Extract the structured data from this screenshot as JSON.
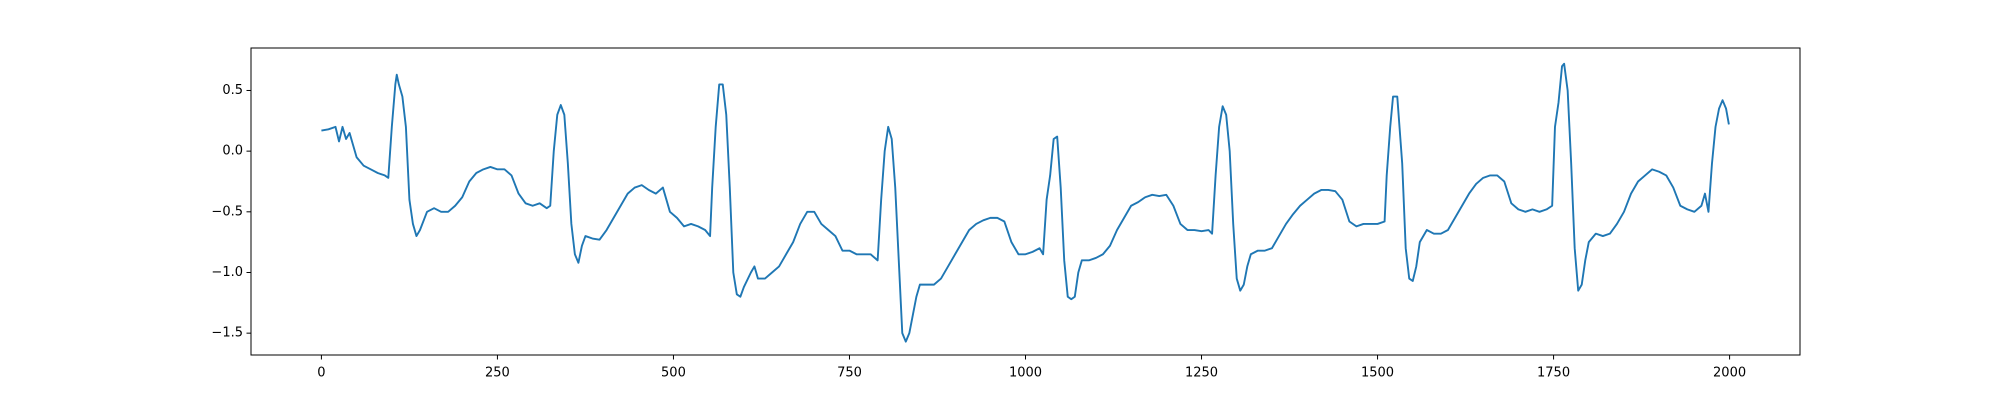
{
  "chart_data": {
    "type": "line",
    "x": [
      0,
      10,
      20,
      25,
      30,
      35,
      40,
      45,
      50,
      60,
      70,
      80,
      90,
      95,
      100,
      105,
      107,
      110,
      115,
      120,
      125,
      130,
      135,
      140,
      150,
      160,
      170,
      180,
      190,
      200,
      210,
      220,
      230,
      240,
      250,
      260,
      270,
      280,
      290,
      300,
      310,
      320,
      325,
      330,
      335,
      340,
      345,
      350,
      355,
      360,
      365,
      370,
      375,
      385,
      395,
      405,
      415,
      425,
      435,
      445,
      455,
      465,
      475,
      485,
      495,
      505,
      515,
      525,
      535,
      545,
      552,
      555,
      560,
      565,
      570,
      575,
      580,
      585,
      590,
      595,
      600,
      610,
      615,
      620,
      630,
      640,
      650,
      660,
      670,
      680,
      690,
      700,
      710,
      720,
      730,
      740,
      750,
      760,
      770,
      780,
      790,
      795,
      800,
      805,
      810,
      815,
      820,
      825,
      830,
      835,
      840,
      845,
      850,
      860,
      870,
      880,
      890,
      900,
      910,
      920,
      930,
      940,
      950,
      960,
      970,
      980,
      990,
      1000,
      1010,
      1020,
      1025,
      1030,
      1035,
      1040,
      1045,
      1050,
      1055,
      1060,
      1065,
      1070,
      1075,
      1080,
      1090,
      1100,
      1110,
      1120,
      1130,
      1140,
      1150,
      1160,
      1170,
      1180,
      1190,
      1200,
      1210,
      1220,
      1230,
      1240,
      1250,
      1260,
      1265,
      1270,
      1275,
      1280,
      1285,
      1290,
      1295,
      1300,
      1305,
      1310,
      1315,
      1320,
      1330,
      1340,
      1350,
      1360,
      1370,
      1380,
      1390,
      1400,
      1410,
      1420,
      1430,
      1440,
      1450,
      1460,
      1470,
      1480,
      1490,
      1500,
      1510,
      1513,
      1518,
      1522,
      1528,
      1535,
      1540,
      1545,
      1550,
      1555,
      1560,
      1570,
      1580,
      1590,
      1600,
      1610,
      1620,
      1630,
      1640,
      1650,
      1660,
      1670,
      1680,
      1690,
      1700,
      1710,
      1720,
      1730,
      1740,
      1748,
      1752,
      1757,
      1762,
      1765,
      1770,
      1775,
      1780,
      1785,
      1790,
      1795,
      1800,
      1810,
      1820,
      1830,
      1840,
      1850,
      1860,
      1870,
      1880,
      1890,
      1900,
      1910,
      1920,
      1930,
      1940,
      1950,
      1960,
      1965,
      1970,
      1975,
      1980,
      1985,
      1990,
      1995,
      1999
    ],
    "series": [
      {
        "color": "#1f77b4",
        "values": [
          0.17,
          0.18,
          0.2,
          0.08,
          0.2,
          0.1,
          0.15,
          0.05,
          -0.05,
          -0.12,
          -0.15,
          -0.18,
          -0.2,
          -0.22,
          0.2,
          0.55,
          0.63,
          0.55,
          0.45,
          0.2,
          -0.4,
          -0.6,
          -0.7,
          -0.65,
          -0.5,
          -0.47,
          -0.5,
          -0.5,
          -0.45,
          -0.38,
          -0.25,
          -0.18,
          -0.15,
          -0.13,
          -0.15,
          -0.15,
          -0.2,
          -0.35,
          -0.43,
          -0.45,
          -0.43,
          -0.47,
          -0.45,
          0.0,
          0.3,
          0.38,
          0.3,
          -0.1,
          -0.6,
          -0.85,
          -0.92,
          -0.78,
          -0.7,
          -0.72,
          -0.73,
          -0.65,
          -0.55,
          -0.45,
          -0.35,
          -0.3,
          -0.28,
          -0.32,
          -0.35,
          -0.3,
          -0.5,
          -0.55,
          -0.62,
          -0.6,
          -0.62,
          -0.65,
          -0.7,
          -0.3,
          0.2,
          0.55,
          0.55,
          0.3,
          -0.3,
          -1.0,
          -1.18,
          -1.2,
          -1.12,
          -1.0,
          -0.95,
          -1.05,
          -1.05,
          -1.0,
          -0.95,
          -0.85,
          -0.75,
          -0.6,
          -0.5,
          -0.5,
          -0.6,
          -0.65,
          -0.7,
          -0.82,
          -0.82,
          -0.85,
          -0.85,
          -0.85,
          -0.9,
          -0.4,
          0.0,
          0.2,
          0.1,
          -0.3,
          -0.9,
          -1.5,
          -1.57,
          -1.5,
          -1.35,
          -1.2,
          -1.1,
          -1.1,
          -1.1,
          -1.05,
          -0.95,
          -0.85,
          -0.75,
          -0.65,
          -0.6,
          -0.57,
          -0.55,
          -0.55,
          -0.58,
          -0.75,
          -0.85,
          -0.85,
          -0.83,
          -0.8,
          -0.85,
          -0.4,
          -0.2,
          0.1,
          0.12,
          -0.3,
          -0.9,
          -1.2,
          -1.22,
          -1.2,
          -1.0,
          -0.9,
          -0.9,
          -0.88,
          -0.85,
          -0.78,
          -0.65,
          -0.55,
          -0.45,
          -0.42,
          -0.38,
          -0.36,
          -0.37,
          -0.36,
          -0.45,
          -0.6,
          -0.65,
          -0.65,
          -0.66,
          -0.65,
          -0.68,
          -0.2,
          0.2,
          0.37,
          0.3,
          0.0,
          -0.6,
          -1.05,
          -1.15,
          -1.1,
          -0.95,
          -0.85,
          -0.82,
          -0.82,
          -0.8,
          -0.7,
          -0.6,
          -0.52,
          -0.45,
          -0.4,
          -0.35,
          -0.32,
          -0.32,
          -0.33,
          -0.4,
          -0.58,
          -0.62,
          -0.6,
          -0.6,
          -0.6,
          -0.58,
          -0.2,
          0.2,
          0.45,
          0.45,
          -0.1,
          -0.8,
          -1.05,
          -1.07,
          -0.95,
          -0.75,
          -0.65,
          -0.68,
          -0.68,
          -0.65,
          -0.55,
          -0.45,
          -0.35,
          -0.27,
          -0.22,
          -0.2,
          -0.2,
          -0.25,
          -0.43,
          -0.48,
          -0.5,
          -0.48,
          -0.5,
          -0.48,
          -0.45,
          0.2,
          0.4,
          0.7,
          0.72,
          0.5,
          -0.1,
          -0.8,
          -1.15,
          -1.1,
          -0.9,
          -0.75,
          -0.68,
          -0.7,
          -0.68,
          -0.6,
          -0.5,
          -0.35,
          -0.25,
          -0.2,
          -0.15,
          -0.17,
          -0.2,
          -0.3,
          -0.45,
          -0.48,
          -0.5,
          -0.45,
          -0.35,
          -0.5,
          -0.1,
          0.2,
          0.35,
          0.42,
          0.35,
          0.22
        ]
      }
    ],
    "xlim": [
      -100,
      2100
    ],
    "xticks": [
      0,
      250,
      500,
      750,
      1000,
      1250,
      1500,
      1750,
      2000
    ],
    "ylim": [
      -1.68,
      0.85
    ],
    "yticks": [
      {
        "value": -1.5,
        "label": "−1.5"
      },
      {
        "value": -1,
        "label": "−1.0"
      },
      {
        "value": -0.5,
        "label": "−0.5"
      },
      {
        "value": 0,
        "label": "0.0"
      },
      0.5
    ]
  }
}
